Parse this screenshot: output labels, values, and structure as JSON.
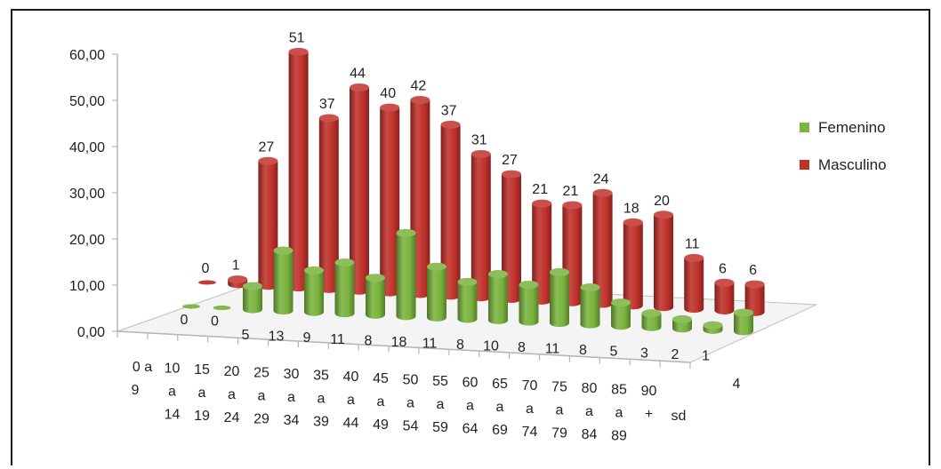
{
  "chart_data": {
    "type": "bar",
    "title": "",
    "xlabel": "",
    "ylabel": "",
    "ylim": [
      0,
      60
    ],
    "yticks": [
      "0,00",
      "10,00",
      "20,00",
      "30,00",
      "40,00",
      "50,00",
      "60,00"
    ],
    "categories": [
      [
        "0 a",
        "9"
      ],
      [
        "10",
        "a",
        "14"
      ],
      [
        "15",
        "a",
        "19"
      ],
      [
        "20",
        "a",
        "24"
      ],
      [
        "25",
        "a",
        "29"
      ],
      [
        "30",
        "a",
        "34"
      ],
      [
        "35",
        "a",
        "39"
      ],
      [
        "40",
        "a",
        "44"
      ],
      [
        "45",
        "a",
        "49"
      ],
      [
        "50",
        "a",
        "54"
      ],
      [
        "55",
        "a",
        "59"
      ],
      [
        "60",
        "a",
        "64"
      ],
      [
        "65",
        "a",
        "69"
      ],
      [
        "70",
        "a",
        "74"
      ],
      [
        "75",
        "a",
        "79"
      ],
      [
        "80",
        "a",
        "84"
      ],
      [
        "85",
        "a",
        "89"
      ],
      [
        "90",
        "+"
      ],
      [
        "sd"
      ]
    ],
    "series": [
      {
        "name": "Femenino",
        "color": "#7ab33e",
        "values": [
          0,
          0,
          5,
          13,
          9,
          11,
          8,
          18,
          11,
          8,
          10,
          8,
          11,
          8,
          5,
          3,
          2,
          1,
          4
        ]
      },
      {
        "name": "Masculino",
        "color": "#c0312b",
        "values": [
          0,
          1,
          27,
          51,
          37,
          44,
          40,
          42,
          37,
          31,
          27,
          21,
          21,
          24,
          18,
          20,
          11,
          6,
          6
        ]
      }
    ],
    "legend": "right",
    "grid": false
  }
}
